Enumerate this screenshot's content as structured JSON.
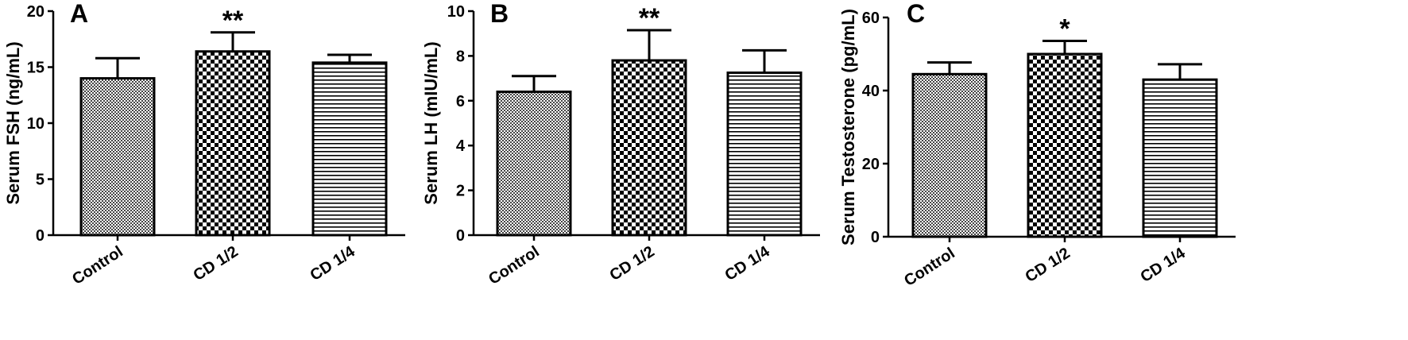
{
  "chart_data": [
    {
      "type": "bar",
      "panel_label": "A",
      "categories": [
        "Control",
        "CD 1/2",
        "CD 1/4"
      ],
      "values": [
        14.0,
        16.4,
        15.4
      ],
      "errors": [
        1.8,
        1.7,
        0.7
      ],
      "significance": [
        "",
        "**",
        ""
      ],
      "ylabel": "Serum FSH (ng/mL)",
      "ylim": [
        0,
        20
      ],
      "yticks": [
        0,
        5,
        10,
        15,
        20
      ],
      "patterns": [
        "dots",
        "checker",
        "hlines"
      ],
      "grid": false
    },
    {
      "type": "bar",
      "panel_label": "B",
      "categories": [
        "Control",
        "CD 1/2",
        "CD 1/4"
      ],
      "values": [
        6.4,
        7.8,
        7.25
      ],
      "errors": [
        0.7,
        1.35,
        1.0
      ],
      "significance": [
        "",
        "**",
        ""
      ],
      "ylabel": "Serum LH (mIU/mL)",
      "ylim": [
        0,
        10
      ],
      "yticks": [
        0,
        2,
        4,
        6,
        8,
        10
      ],
      "patterns": [
        "dots",
        "checker",
        "hlines"
      ],
      "grid": false
    },
    {
      "type": "bar",
      "panel_label": "C",
      "categories": [
        "Control",
        "CD 1/2",
        "CD 1/4"
      ],
      "values": [
        44.5,
        50.0,
        43.0
      ],
      "errors": [
        3.2,
        3.6,
        4.2
      ],
      "significance": [
        "",
        "*",
        ""
      ],
      "ylabel": "Serum Testosterone (pg/mL)",
      "ylim": [
        0,
        60
      ],
      "yticks": [
        0,
        20,
        40,
        60
      ],
      "patterns": [
        "dots",
        "checker",
        "hlines"
      ],
      "grid": false
    }
  ]
}
